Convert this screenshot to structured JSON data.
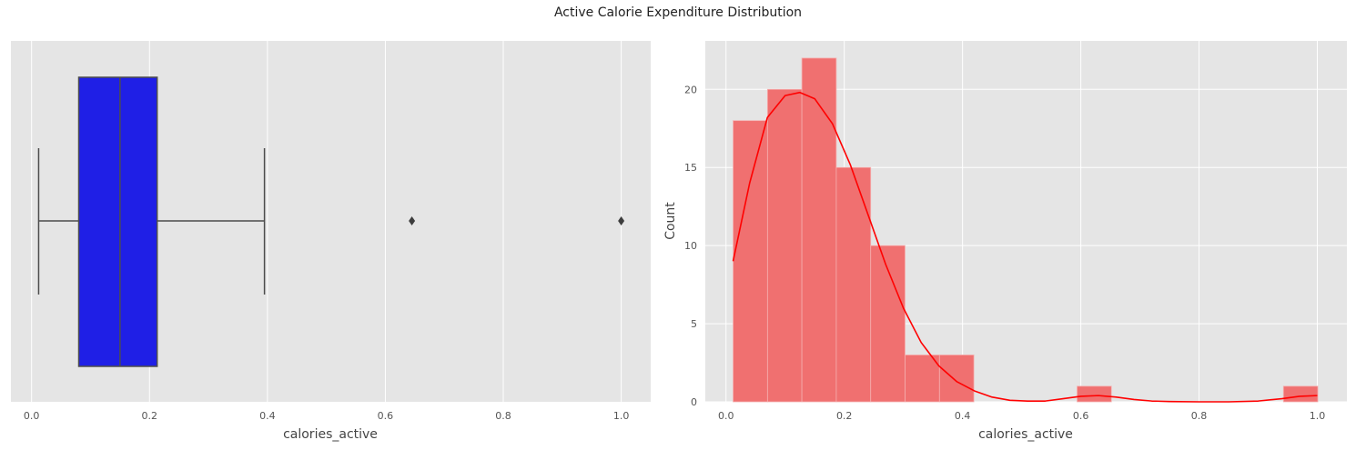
{
  "figure": {
    "title": "Active Calorie Expenditure Distribution",
    "colors": {
      "panel_bg": "#e5e5e5",
      "grid": "#ffffff",
      "box_fill": "#1f1fe6",
      "box_edge": "#4d4d4d",
      "hist_fill": "#f07070",
      "kde": "#ff0000"
    }
  },
  "chart_data": [
    {
      "type": "box",
      "orientation": "horizontal",
      "xlabel": "calories_active",
      "ylabel": "",
      "xlim": [
        -0.035,
        1.05
      ],
      "xticks": [
        0.0,
        0.2,
        0.4,
        0.6,
        0.8,
        1.0
      ],
      "xtick_labels": [
        "0.0",
        "0.2",
        "0.4",
        "0.6",
        "0.8",
        "1.0"
      ],
      "whisker_low": 0.012,
      "q1": 0.08,
      "median": 0.15,
      "q3": 0.213,
      "whisker_high": 0.395,
      "outliers": [
        0.645,
        1.0
      ],
      "grid": true
    },
    {
      "type": "histogram",
      "xlabel": "calories_active",
      "ylabel": "Count",
      "xlim": [
        -0.035,
        1.05
      ],
      "ylim": [
        0,
        23.1
      ],
      "xticks": [
        0.0,
        0.2,
        0.4,
        0.6,
        0.8,
        1.0
      ],
      "xtick_labels": [
        "0.0",
        "0.2",
        "0.4",
        "0.6",
        "0.8",
        "1.0"
      ],
      "yticks": [
        0,
        5,
        10,
        15,
        20
      ],
      "ytick_labels": [
        "0",
        "5",
        "10",
        "15",
        "20"
      ],
      "bin_edges": [
        0.012,
        0.0702,
        0.1283,
        0.1865,
        0.2447,
        0.3028,
        0.361,
        0.4192,
        0.4773,
        0.5355,
        0.5937,
        0.6518,
        0.71,
        0.7682,
        0.8263,
        0.8845,
        0.9427,
        1.0008
      ],
      "counts": [
        18,
        20,
        22,
        15,
        10,
        3,
        3,
        0,
        0,
        0,
        1,
        0,
        0,
        0,
        0,
        0,
        1
      ],
      "kde": {
        "x": [
          0.012,
          0.04,
          0.07,
          0.1,
          0.125,
          0.15,
          0.18,
          0.21,
          0.24,
          0.27,
          0.3,
          0.33,
          0.36,
          0.39,
          0.42,
          0.45,
          0.48,
          0.51,
          0.54,
          0.57,
          0.6,
          0.63,
          0.66,
          0.69,
          0.72,
          0.75,
          0.8,
          0.85,
          0.9,
          0.94,
          0.97,
          1.0
        ],
        "y": [
          9.0,
          14.0,
          18.2,
          19.6,
          19.8,
          19.4,
          17.8,
          15.2,
          12.0,
          8.8,
          6.0,
          3.8,
          2.3,
          1.3,
          0.7,
          0.3,
          0.1,
          0.05,
          0.05,
          0.2,
          0.35,
          0.4,
          0.3,
          0.15,
          0.05,
          0.02,
          0.0,
          0.0,
          0.05,
          0.2,
          0.35,
          0.4
        ]
      },
      "grid": true
    }
  ]
}
